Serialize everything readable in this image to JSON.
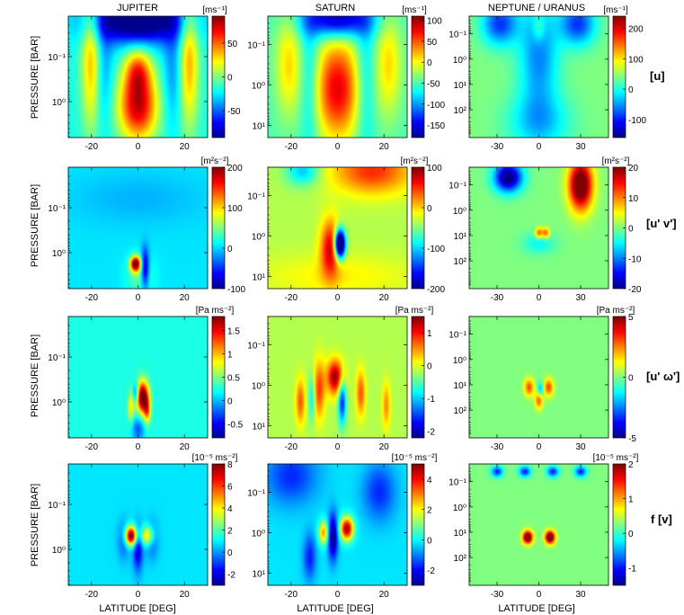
{
  "figure": {
    "column_titles": [
      "JUPITER",
      "SATURN",
      "NEPTUNE / URANUS"
    ],
    "row_labels": [
      "[u]",
      "[u' v']",
      "[u' ω']",
      "f [v]"
    ],
    "ylabel": "PRESSURE [BAR]",
    "xlabel": "LATITUDE [DEG]",
    "units": [
      [
        "[ms⁻¹]",
        "[ms⁻¹]",
        "[ms⁻¹]"
      ],
      [
        "[m²s⁻²]",
        "[m²s⁻²]",
        "[m²s⁻²]"
      ],
      [
        "[Pa ms⁻²]",
        "[Pa ms⁻²]",
        "[Pa ms⁻²]"
      ],
      [
        "[10⁻⁵ ms⁻²]",
        "[10⁻⁵ ms⁻²]",
        "[10⁻⁵ ms⁻²]"
      ]
    ],
    "colormap": [
      "#00008f",
      "#0000ff",
      "#0080ff",
      "#00ffff",
      "#80ff80",
      "#ffff00",
      "#ff8000",
      "#ff0000",
      "#800000"
    ]
  },
  "chart_data": {
    "type": "heatmap",
    "columns": [
      {
        "x_ticks": [
          "-20",
          "0",
          "20"
        ],
        "x_tick_values": [
          -20,
          0,
          20
        ],
        "xlim": [
          -30,
          30
        ],
        "y_ticks": [
          "10⁻¹",
          "10⁰"
        ],
        "y_tick_values": [
          0.1,
          1
        ],
        "ylim_log10": [
          -1.9,
          0.8
        ]
      },
      {
        "x_ticks": [
          "-20",
          "0",
          "20"
        ],
        "x_tick_values": [
          -20,
          0,
          20
        ],
        "xlim": [
          -30,
          30
        ],
        "y_ticks": [
          "10⁻¹",
          "10⁰",
          "10¹"
        ],
        "y_tick_values": [
          0.1,
          1,
          10
        ],
        "ylim_log10": [
          -1.7,
          1.3
        ]
      },
      {
        "x_ticks": [
          "-30",
          "0",
          "30"
        ],
        "x_tick_values": [
          -30,
          0,
          30
        ],
        "xlim": [
          -50,
          50
        ],
        "y_ticks": [
          "10⁻¹",
          "10⁰",
          "10¹",
          "10²"
        ],
        "y_tick_values": [
          0.1,
          1,
          10,
          100
        ],
        "ylim_log10": [
          -1.7,
          3.1
        ]
      }
    ],
    "panels": [
      {
        "row": 0,
        "col": 0,
        "background": 0.4,
        "cbar_ticks": [
          50,
          0,
          -50
        ],
        "cbar_range": [
          -90,
          90
        ],
        "features": [
          {
            "x": 0,
            "log10p": 0.1,
            "sx": 6,
            "sy": 0.55,
            "v": 95
          },
          {
            "x": 0,
            "log10p": -0.7,
            "sx": 4,
            "sy": 0.35,
            "v": 55
          },
          {
            "x": 0,
            "log10p": -1.8,
            "sx": 14,
            "sy": 0.35,
            "v": -95
          },
          {
            "x": -15,
            "log10p": -0.7,
            "sx": 3,
            "sy": 0.9,
            "v": -25
          },
          {
            "x": 15,
            "log10p": -0.7,
            "sx": 3,
            "sy": 0.9,
            "v": -25
          },
          {
            "x": -20,
            "log10p": -0.9,
            "sx": 3,
            "sy": 1.1,
            "v": 55
          },
          {
            "x": 22,
            "log10p": -0.9,
            "sx": 3,
            "sy": 1.1,
            "v": 55
          }
        ]
      },
      {
        "row": 0,
        "col": 1,
        "background": 0.45,
        "cbar_ticks": [
          100,
          50,
          0,
          -50,
          -100,
          -150
        ],
        "cbar_range": [
          -180,
          110
        ],
        "features": [
          {
            "x": 0,
            "log10p": 0.1,
            "sx": 7,
            "sy": 0.9,
            "v": 130
          },
          {
            "x": 0,
            "log10p": -1.6,
            "sx": 10,
            "sy": 0.3,
            "v": -130
          },
          {
            "x": -21,
            "log10p": -0.5,
            "sx": 4,
            "sy": 0.9,
            "v": 60
          },
          {
            "x": 22,
            "log10p": -0.5,
            "sx": 4,
            "sy": 0.9,
            "v": 60
          },
          {
            "x": -12,
            "log10p": -0.1,
            "sx": 3,
            "sy": 1.4,
            "v": -40
          },
          {
            "x": 12,
            "log10p": -0.1,
            "sx": 3,
            "sy": 1.4,
            "v": -40
          }
        ]
      },
      {
        "row": 0,
        "col": 2,
        "background": 0.5,
        "cbar_ticks": [
          200,
          100,
          0,
          -100
        ],
        "cbar_range": [
          -160,
          240
        ],
        "features": [
          {
            "x": 0,
            "log10p": -0.2,
            "sx": 10,
            "sy": 1.6,
            "v": -100
          },
          {
            "x": -28,
            "log10p": -1.4,
            "sx": 9,
            "sy": 0.6,
            "v": -130
          },
          {
            "x": 28,
            "log10p": -1.4,
            "sx": 9,
            "sy": 0.6,
            "v": -130
          },
          {
            "x": 0,
            "log10p": 2.5,
            "sx": 16,
            "sy": 0.8,
            "v": -70
          },
          {
            "x": 0,
            "log10p": -1.2,
            "sx": 3,
            "sy": 0.4,
            "v": 50
          }
        ]
      },
      {
        "row": 1,
        "col": 0,
        "background": 0.35,
        "cbar_ticks": [
          200,
          100,
          0,
          -100
        ],
        "cbar_range": [
          -100,
          200
        ],
        "features": [
          {
            "x": -1,
            "log10p": 0.25,
            "sx": 1.6,
            "sy": 0.12,
            "v": 200
          },
          {
            "x": 3,
            "log10p": 0.35,
            "sx": 1.3,
            "sy": 0.3,
            "v": -110
          },
          {
            "x": 1,
            "log10p": 0.5,
            "sx": 4,
            "sy": 0.3,
            "v": 40
          },
          {
            "x": 0,
            "log10p": -1.2,
            "sx": 20,
            "sy": 0.4,
            "v": -15
          }
        ]
      },
      {
        "row": 1,
        "col": 1,
        "background": 0.55,
        "cbar_ticks": [
          100,
          0,
          -100,
          -200
        ],
        "cbar_range": [
          -200,
          100
        ],
        "features": [
          {
            "x": -3,
            "log10p": 0.3,
            "sx": 3,
            "sy": 0.5,
            "v": 110
          },
          {
            "x": 1,
            "log10p": 0.2,
            "sx": 1.6,
            "sy": 0.25,
            "v": -280
          },
          {
            "x": 15,
            "log10p": -1.6,
            "sx": 12,
            "sy": 0.4,
            "v": 85
          },
          {
            "x": -15,
            "log10p": -1.6,
            "sx": 5,
            "sy": 0.25,
            "v": -70
          },
          {
            "x": 0,
            "log10p": 1.0,
            "sx": 25,
            "sy": 0.4,
            "v": 25
          }
        ]
      },
      {
        "row": 1,
        "col": 2,
        "background": 0.5,
        "cbar_ticks": [
          20,
          10,
          0,
          -10,
          -20
        ],
        "cbar_range": [
          -20,
          20
        ],
        "features": [
          {
            "x": -22,
            "log10p": -1.3,
            "sx": 7,
            "sy": 0.4,
            "v": -22
          },
          {
            "x": 30,
            "log10p": -1.0,
            "sx": 6,
            "sy": 0.7,
            "v": 25
          },
          {
            "x": 0,
            "log10p": 0.9,
            "sx": 2,
            "sy": 0.15,
            "v": 12
          },
          {
            "x": 5,
            "log10p": 0.9,
            "sx": 2,
            "sy": 0.15,
            "v": 12
          },
          {
            "x": 0,
            "log10p": 1.3,
            "sx": 8,
            "sy": 0.3,
            "v": -5
          }
        ]
      },
      {
        "row": 2,
        "col": 0,
        "background": 0.4,
        "cbar_ticks": [
          1.5,
          1,
          0.5,
          0,
          -0.5
        ],
        "cbar_range": [
          -0.8,
          1.8
        ],
        "features": [
          {
            "x": 2,
            "log10p": -0.1,
            "sx": 1.8,
            "sy": 0.25,
            "v": 1.8
          },
          {
            "x": -1,
            "log10p": -0.2,
            "sx": 1.0,
            "sy": 0.15,
            "v": -0.6
          },
          {
            "x": 4,
            "log10p": 0.2,
            "sx": 1.0,
            "sy": 0.2,
            "v": 0.8
          },
          {
            "x": -3,
            "log10p": 0.1,
            "sx": 1.0,
            "sy": 0.25,
            "v": 0.6
          },
          {
            "x": 0,
            "log10p": 0.6,
            "sx": 2.0,
            "sy": 0.2,
            "v": -0.5
          }
        ]
      },
      {
        "row": 2,
        "col": 1,
        "background": 0.55,
        "cbar_ticks": [
          1,
          0,
          -1,
          -2
        ],
        "cbar_range": [
          -2.2,
          1.5
        ],
        "features": [
          {
            "x": -1,
            "log10p": -0.2,
            "sx": 2.5,
            "sy": 0.3,
            "v": 1.6
          },
          {
            "x": 2,
            "log10p": 0.4,
            "sx": 1.2,
            "sy": 0.4,
            "v": -1.5
          },
          {
            "x": -8,
            "log10p": 0.1,
            "sx": 1.8,
            "sy": 0.5,
            "v": 1.0
          },
          {
            "x": -16,
            "log10p": 0.4,
            "sx": 1.4,
            "sy": 0.4,
            "v": 0.9
          },
          {
            "x": 10,
            "log10p": 0.2,
            "sx": 1.4,
            "sy": 0.4,
            "v": 0.9
          },
          {
            "x": 21,
            "log10p": 0.5,
            "sx": 1.2,
            "sy": 0.4,
            "v": 0.7
          },
          {
            "x": -11,
            "log10p": 0.3,
            "sx": 1.0,
            "sy": 0.4,
            "v": -0.8
          }
        ]
      },
      {
        "row": 2,
        "col": 2,
        "background": 0.5,
        "cbar_ticks": [
          5,
          0,
          -5
        ],
        "cbar_range": [
          -5,
          5
        ],
        "features": [
          {
            "x": -7,
            "log10p": 1.1,
            "sx": 2.5,
            "sy": 0.25,
            "v": 3
          },
          {
            "x": 7,
            "log10p": 1.1,
            "sx": 2.5,
            "sy": 0.25,
            "v": 3
          },
          {
            "x": 0,
            "log10p": 1.6,
            "sx": 2.0,
            "sy": 0.25,
            "v": 3
          },
          {
            "x": 1,
            "log10p": 1.2,
            "sx": 1.5,
            "sy": 0.2,
            "v": -2.5
          }
        ]
      },
      {
        "row": 3,
        "col": 0,
        "background": 0.35,
        "cbar_ticks": [
          8,
          6,
          4,
          2,
          0,
          -2
        ],
        "cbar_range": [
          -3,
          8
        ],
        "features": [
          {
            "x": -3,
            "log10p": -0.3,
            "sx": 1.8,
            "sy": 0.15,
            "v": 8
          },
          {
            "x": 4,
            "log10p": -0.3,
            "sx": 2.0,
            "sy": 0.15,
            "v": 4
          },
          {
            "x": 0,
            "log10p": 0.0,
            "sx": 1.5,
            "sy": 0.35,
            "v": -3
          },
          {
            "x": -6,
            "log10p": -0.2,
            "sx": 2.0,
            "sy": 0.3,
            "v": -1.5
          },
          {
            "x": 6,
            "log10p": -0.2,
            "sx": 2.0,
            "sy": 0.3,
            "v": -1.5
          }
        ]
      },
      {
        "row": 3,
        "col": 1,
        "background": 0.35,
        "cbar_ticks": [
          4,
          2,
          0,
          -2
        ],
        "cbar_range": [
          -3,
          5
        ],
        "features": [
          {
            "x": 4,
            "log10p": -0.1,
            "sx": 2.0,
            "sy": 0.2,
            "v": 5
          },
          {
            "x": -6,
            "log10p": 0.0,
            "sx": 1.5,
            "sy": 0.2,
            "v": 3
          },
          {
            "x": -2,
            "log10p": 0.1,
            "sx": 1.5,
            "sy": 0.4,
            "v": -3
          },
          {
            "x": -20,
            "log10p": -1.4,
            "sx": 8,
            "sy": 0.5,
            "v": -1.5
          },
          {
            "x": 18,
            "log10p": -1.0,
            "sx": 5,
            "sy": 0.5,
            "v": -1.5
          },
          {
            "x": -12,
            "log10p": 0.6,
            "sx": 2,
            "sy": 0.4,
            "v": -1.6
          }
        ]
      },
      {
        "row": 3,
        "col": 2,
        "background": 0.5,
        "cbar_ticks": [
          2,
          1,
          0,
          -1
        ],
        "cbar_range": [
          -1.5,
          2
        ],
        "features": [
          {
            "x": -8,
            "log10p": 1.2,
            "sx": 2.5,
            "sy": 0.18,
            "v": 2.2
          },
          {
            "x": 8,
            "log10p": 1.2,
            "sx": 2.5,
            "sy": 0.18,
            "v": 2.2
          },
          {
            "x": -30,
            "log10p": -1.4,
            "sx": 3,
            "sy": 0.15,
            "v": -1.2
          },
          {
            "x": -10,
            "log10p": -1.4,
            "sx": 3,
            "sy": 0.15,
            "v": -1.2
          },
          {
            "x": 10,
            "log10p": -1.4,
            "sx": 3,
            "sy": 0.15,
            "v": -1.2
          },
          {
            "x": 30,
            "log10p": -1.4,
            "sx": 3,
            "sy": 0.15,
            "v": -1.2
          }
        ]
      }
    ]
  }
}
